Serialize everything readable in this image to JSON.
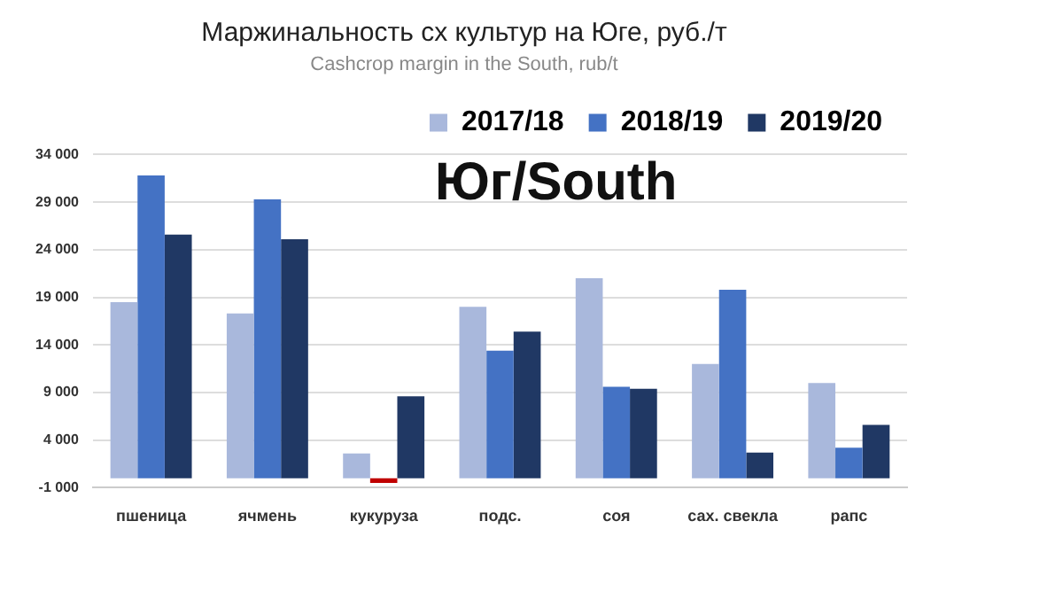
{
  "chart_data": {
    "type": "bar",
    "title": "Маржинальность сх культур на Юге, руб./т",
    "subtitle": "Cashcrop margin in the South, rub/t",
    "annotations": [
      "Юг/South"
    ],
    "categories": [
      "пшеница",
      "ячмень",
      "кукуруза",
      "подс.",
      "соя",
      "сах. свекла",
      "рапс"
    ],
    "series": [
      {
        "name": "2017/18",
        "color": "#a9b8dc",
        "values": [
          18500,
          17300,
          2600,
          18000,
          21000,
          12000,
          10000
        ]
      },
      {
        "name": "2018/19",
        "color": "#4472c4",
        "colors": [
          "#4472c4",
          "#4472c4",
          "#c00000",
          "#4472c4",
          "#4472c4",
          "#4472c4",
          "#4472c4"
        ],
        "values": [
          31800,
          29300,
          -500,
          13400,
          9600,
          19800,
          3200
        ]
      },
      {
        "name": "2019/20",
        "color": "#203864",
        "values": [
          25600,
          25100,
          8600,
          15400,
          9400,
          2700,
          5600
        ]
      }
    ],
    "ylim": [
      -1000,
      34000
    ],
    "yticks": [
      {
        "value": -1000,
        "label": "-1 000"
      },
      {
        "value": 4000,
        "label": "4 000"
      },
      {
        "value": 9000,
        "label": "9 000"
      },
      {
        "value": 14000,
        "label": "14 000"
      },
      {
        "value": 19000,
        "label": "19 000"
      },
      {
        "value": 24000,
        "label": "24 000"
      },
      {
        "value": 29000,
        "label": "29 000"
      },
      {
        "value": 34000,
        "label": "34 000"
      }
    ],
    "grid": "y",
    "legend": "top right"
  }
}
